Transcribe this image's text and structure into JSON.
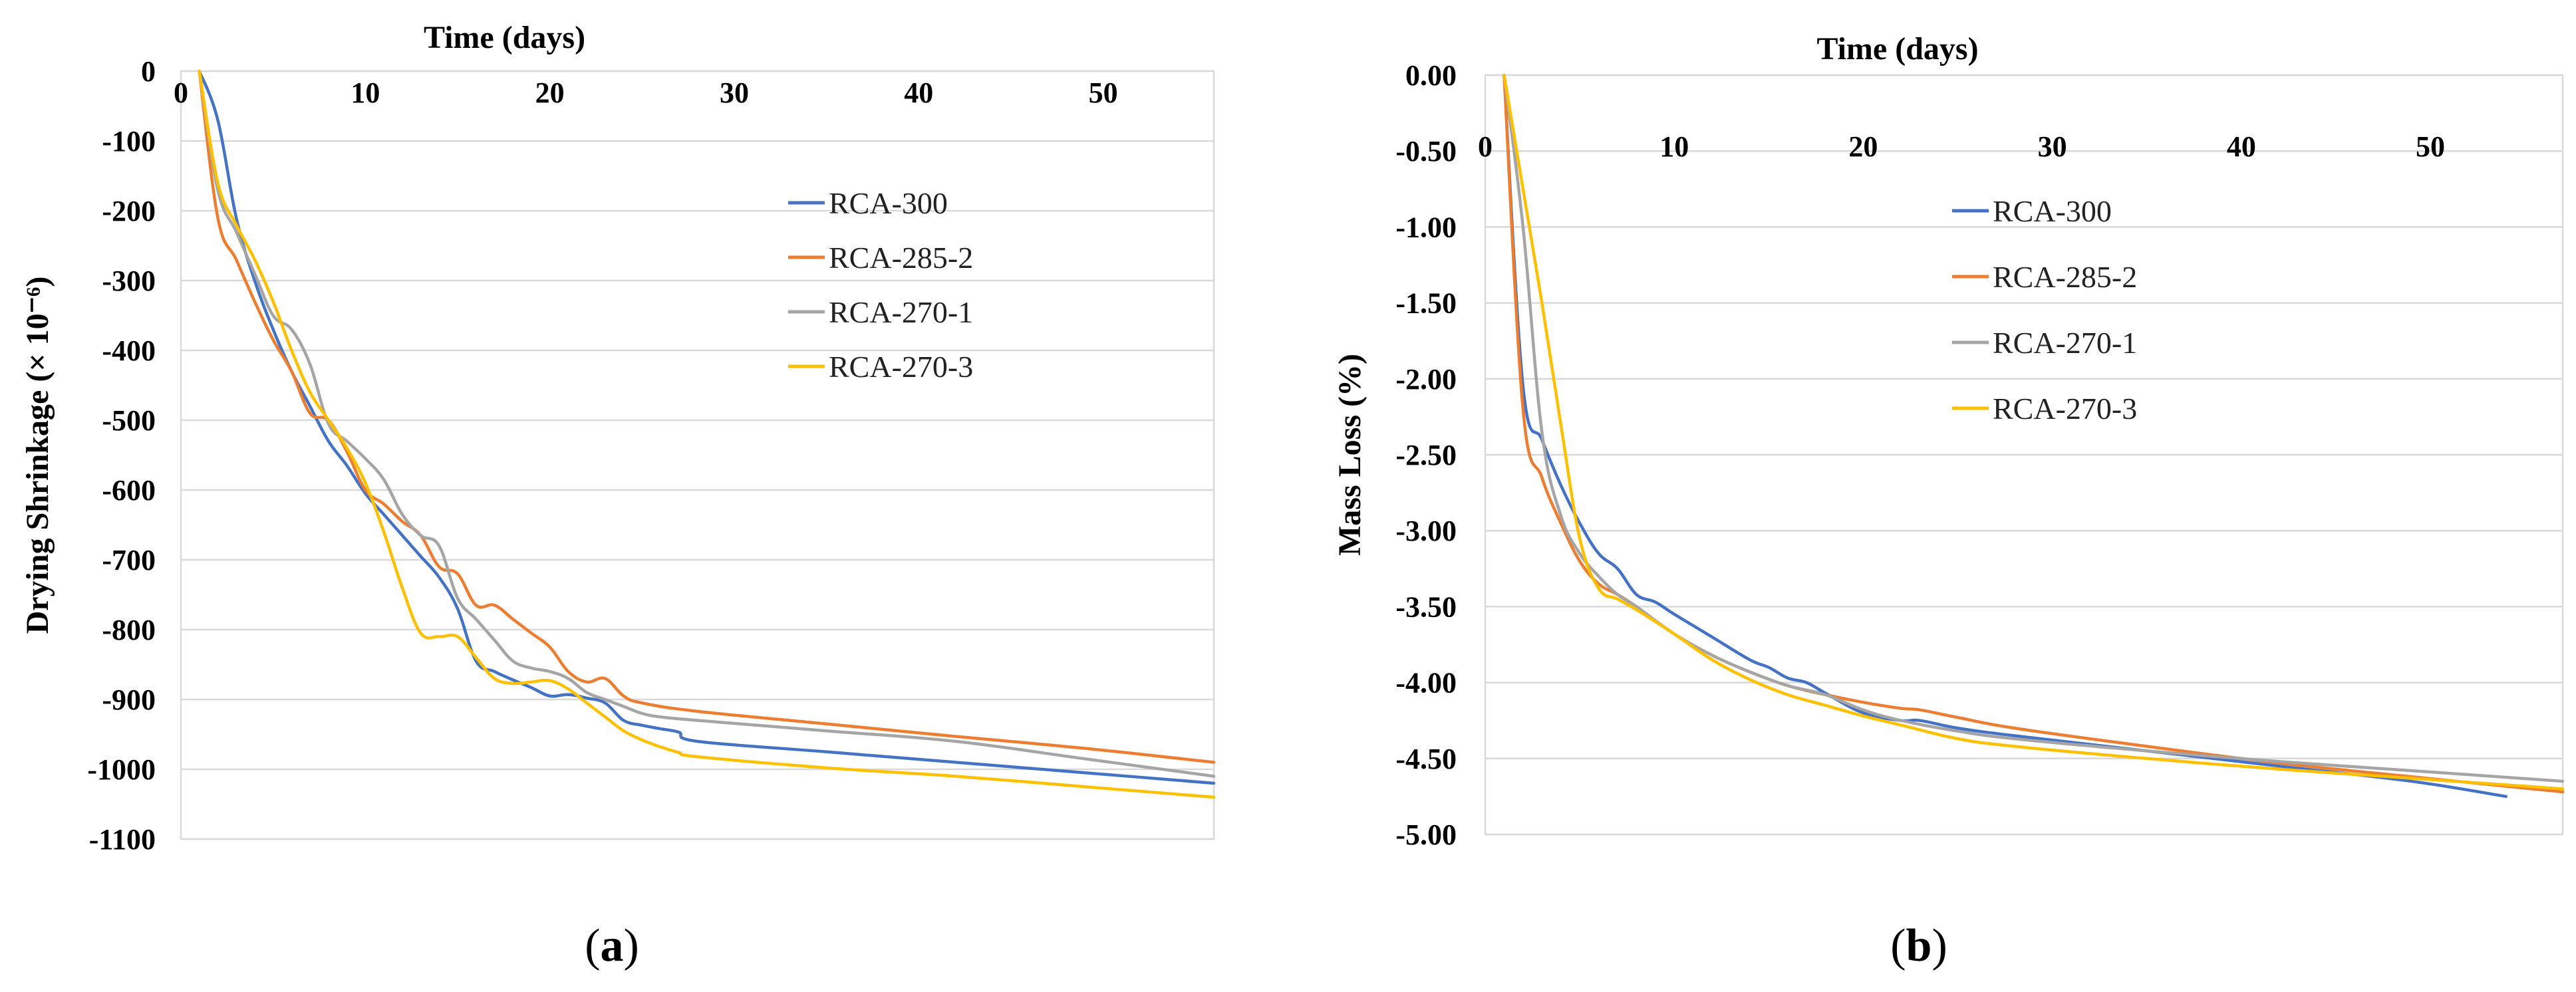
{
  "colors": {
    "RCA-300": "#4472C4",
    "RCA-285-2": "#ED7D31",
    "RCA-270-1": "#A5A5A5",
    "RCA-270-3": "#FFC000"
  },
  "chart_data": [
    {
      "type": "line",
      "panel_label": "(a)",
      "panel_letter": "a",
      "title": "",
      "xlabel": "Time (days)",
      "xlabel_position": "top",
      "ylabel": "Drying Shrinkage (× 10⁻⁶)",
      "xlim": [
        0,
        56
      ],
      "ylim": [
        -1100,
        0
      ],
      "x_ticks": [
        0,
        10,
        20,
        30,
        40,
        50
      ],
      "y_ticks": [
        0,
        -100,
        -200,
        -300,
        -400,
        -500,
        -600,
        -700,
        -800,
        -900,
        -1000,
        -1100
      ],
      "y_tick_labels": [
        "0",
        "-100",
        "-200",
        "-300",
        "-400",
        "-500",
        "-600",
        "-700",
        "-800",
        "-900",
        "-1000",
        "-1100"
      ],
      "grid": true,
      "legend_position": "upper-center-right",
      "series": [
        {
          "name": "RCA-300",
          "x": [
            1,
            2,
            3,
            4,
            5,
            6,
            7,
            8,
            9,
            10,
            11,
            12,
            13,
            14,
            15,
            16,
            17,
            18,
            19,
            20,
            21,
            22,
            23,
            24,
            25,
            26,
            27,
            28,
            35,
            42,
            49,
            56
          ],
          "y": [
            0,
            -70,
            -210,
            -300,
            -370,
            -430,
            -480,
            -530,
            -565,
            -605,
            -635,
            -665,
            -695,
            -725,
            -770,
            -845,
            -860,
            -872,
            -883,
            -895,
            -893,
            -898,
            -905,
            -930,
            -937,
            -942,
            -947,
            -960,
            -975,
            -990,
            -1005,
            -1020
          ]
        },
        {
          "name": "RCA-285-2",
          "x": [
            1,
            2,
            3,
            4,
            5,
            6,
            7,
            8,
            9,
            10,
            11,
            12,
            13,
            14,
            15,
            16,
            17,
            18,
            19,
            20,
            21,
            22,
            23,
            24,
            25,
            28,
            35,
            42,
            49,
            56
          ],
          "y": [
            0,
            -210,
            -270,
            -330,
            -385,
            -430,
            -490,
            -500,
            -545,
            -600,
            -620,
            -645,
            -665,
            -710,
            -720,
            -765,
            -765,
            -785,
            -805,
            -825,
            -860,
            -875,
            -870,
            -895,
            -905,
            -917,
            -935,
            -953,
            -970,
            -990
          ]
        },
        {
          "name": "RCA-270-1",
          "x": [
            1,
            2,
            3,
            4,
            5,
            6,
            7,
            8,
            9,
            10,
            11,
            12,
            13,
            14,
            15,
            16,
            17,
            18,
            19,
            20,
            21,
            22,
            23,
            24,
            25,
            26,
            28,
            35,
            42,
            49,
            56
          ],
          "y": [
            0,
            -170,
            -230,
            -290,
            -350,
            -370,
            -420,
            -505,
            -530,
            -555,
            -585,
            -635,
            -665,
            -680,
            -755,
            -785,
            -815,
            -845,
            -855,
            -860,
            -870,
            -890,
            -900,
            -910,
            -920,
            -925,
            -930,
            -945,
            -960,
            -985,
            -1010
          ]
        },
        {
          "name": "RCA-270-3",
          "x": [
            1,
            2,
            3,
            4,
            5,
            6,
            7,
            8,
            9,
            10,
            11,
            12,
            13,
            14,
            15,
            16,
            17,
            18,
            19,
            20,
            21,
            22,
            23,
            24,
            25,
            26,
            27,
            28,
            35,
            42,
            49,
            56
          ],
          "y": [
            0,
            -160,
            -220,
            -270,
            -330,
            -400,
            -460,
            -500,
            -540,
            -590,
            -660,
            -740,
            -805,
            -810,
            -810,
            -840,
            -870,
            -877,
            -875,
            -873,
            -885,
            -905,
            -925,
            -945,
            -958,
            -968,
            -976,
            -982,
            -998,
            -1010,
            -1025,
            -1040
          ]
        }
      ]
    },
    {
      "type": "line",
      "panel_label": "(b)",
      "panel_letter": "b",
      "title": "",
      "xlabel": "Time (days)",
      "xlabel_position": "top",
      "ylabel": "Mass Loss (%)",
      "xlim": [
        0,
        57
      ],
      "ylim": [
        -5.0,
        0.0
      ],
      "x_ticks": [
        0,
        10,
        20,
        30,
        40,
        50
      ],
      "y_ticks": [
        0,
        -0.5,
        -1.0,
        -1.5,
        -2.0,
        -2.5,
        -3.0,
        -3.5,
        -4.0,
        -4.5,
        -5.0
      ],
      "y_tick_labels": [
        "0.00",
        "-0.50",
        "-1.00",
        "-1.50",
        "-2.00",
        "-2.50",
        "-3.00",
        "-3.50",
        "-4.00",
        "-4.50",
        "-5.00"
      ],
      "grid": true,
      "legend_position": "upper-center",
      "series": [
        {
          "name": "RCA-300",
          "x": [
            1,
            2,
            3,
            4,
            5,
            6,
            7,
            8,
            9,
            10,
            12,
            14,
            15,
            16,
            17,
            18,
            20,
            22,
            23,
            25,
            28,
            35,
            42,
            49,
            54
          ],
          "y": [
            0,
            -2.05,
            -2.4,
            -2.7,
            -2.95,
            -3.15,
            -3.25,
            -3.42,
            -3.47,
            -3.55,
            -3.7,
            -3.85,
            -3.9,
            -3.97,
            -4.0,
            -4.07,
            -4.2,
            -4.25,
            -4.25,
            -4.3,
            -4.35,
            -4.45,
            -4.55,
            -4.65,
            -4.75
          ]
        },
        {
          "name": "RCA-285-2",
          "x": [
            1,
            2,
            3,
            4,
            5,
            6,
            7,
            8,
            10,
            12,
            14,
            16,
            18,
            20,
            22,
            23,
            25,
            28,
            35,
            42,
            49,
            57
          ],
          "y": [
            0,
            -2.2,
            -2.65,
            -2.95,
            -3.2,
            -3.35,
            -3.42,
            -3.5,
            -3.68,
            -3.82,
            -3.93,
            -4.02,
            -4.08,
            -4.13,
            -4.17,
            -4.18,
            -4.23,
            -4.3,
            -4.42,
            -4.53,
            -4.62,
            -4.72
          ]
        },
        {
          "name": "RCA-270-1",
          "x": [
            1,
            2,
            3,
            4,
            5,
            6,
            7,
            8,
            10,
            12,
            14,
            16,
            18,
            20,
            22,
            25,
            28,
            35,
            42,
            49,
            57
          ],
          "y": [
            0,
            -1.0,
            -2.35,
            -2.9,
            -3.15,
            -3.3,
            -3.42,
            -3.5,
            -3.68,
            -3.82,
            -3.93,
            -4.02,
            -4.08,
            -4.18,
            -4.25,
            -4.32,
            -4.37,
            -4.45,
            -4.52,
            -4.58,
            -4.65
          ]
        },
        {
          "name": "RCA-270-3",
          "x": [
            1,
            2,
            3,
            4,
            5,
            6,
            7,
            8,
            10,
            12,
            14,
            16,
            18,
            20,
            22,
            25,
            28,
            35,
            42,
            49,
            57
          ],
          "y": [
            0,
            -0.75,
            -1.5,
            -2.3,
            -3.05,
            -3.38,
            -3.45,
            -3.52,
            -3.68,
            -3.85,
            -3.98,
            -4.08,
            -4.15,
            -4.22,
            -4.28,
            -4.37,
            -4.42,
            -4.5,
            -4.57,
            -4.63,
            -4.7
          ]
        }
      ]
    }
  ]
}
